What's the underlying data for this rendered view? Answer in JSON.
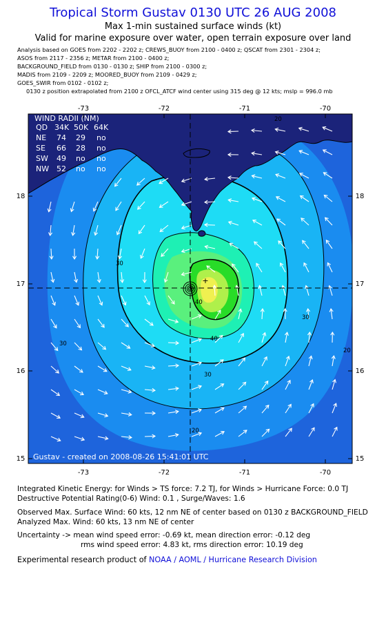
{
  "header": {
    "title": "Tropical Storm Gustav 0130 UTC 26 AUG 2008",
    "subtitle": "Max 1-min sustained surface winds (kt)",
    "validity": "Valid for marine exposure over water, open terrain exposure over land"
  },
  "sources": [
    "Analysis based on  GOES from 2202 - 2202 z;  CREWS_BUOY from 2100 - 0400 z;  QSCAT from 2301 - 2304 z;",
    "ASOS from 2117 - 2356 z;  METAR from 2100 - 0400 z;",
    "BACKGROUND_FIELD from 0130 - 0130 z;  SHIP from 2100 - 0300 z;",
    "MADIS from 2109 - 2209 z;  MOORED_BUOY from 2109 - 0429 z;",
    "GOES_SWIR from 0102 - 0102 z;",
    "     0130 z position extrapolated from 2100 z OFCL_ATCF wind center using 315 deg @ 12 kts; mslp = 996.0 mb"
  ],
  "map": {
    "lon_ticks": [
      "-73",
      "-72",
      "-71",
      "-70"
    ],
    "lat_ticks": [
      "18",
      "17",
      "16",
      "15"
    ],
    "lon_range": [
      -73.7,
      -69.8
    ],
    "lat_range": [
      15.0,
      17.95
    ],
    "center": {
      "lon": -71.65,
      "lat": 16.95
    },
    "contour_labels": [
      "20",
      "30",
      "30",
      "30",
      "30",
      "40",
      "40",
      "20",
      "20"
    ],
    "credit": "Gustav - created on 2008-08-26 15:41:01 UTC",
    "colors": {
      "ocean": "#1e64dc",
      "band_25": "#1a8cf0",
      "band_30": "#19b4f5",
      "band_35": "#1edcf5",
      "band_40": "#1ef0b4",
      "band_45": "#5af07d",
      "band_50": "#28dc28",
      "band_55": "#aff04b",
      "band_60": "#f0f050"
    }
  },
  "wind_radii": {
    "title": "WIND RADII (NM)",
    "columns": [
      "QD",
      "34K",
      "50K",
      "64K"
    ],
    "rows": [
      [
        "NE",
        "74",
        "29",
        "no"
      ],
      [
        "SE",
        "66",
        "28",
        "no"
      ],
      [
        "SW",
        "49",
        "no",
        "no"
      ],
      [
        "NW",
        "52",
        "no",
        "no"
      ]
    ]
  },
  "stats": {
    "ike": "Integrated Kinetic Energy:  for Winds > TS force: 7.2 TJ,  for Winds > Hurricane Force: 0.0 TJ",
    "dpr": "Destructive Potential Rating(0-6)   Wind: 0.1 , Surge/Waves: 1.6",
    "obs_max": "Observed Max. Surface Wind: 60 kts, 12 nm NE of center based on 0130 z BACKGROUND_FIELD",
    "analyzed_max": "Analyzed Max. Wind: 60 kts, 13 nm NE of center",
    "uncertainty_1": "Uncertainty -> mean wind speed error:  -0.69 kt,   mean direction error:  -0.12 deg",
    "uncertainty_2": "rms wind speed error: 4.83 kt,   rms direction error: 10.19 deg",
    "footer_prefix": "Experimental research product of ",
    "footer_link": "NOAA / AOML / Hurricane Research Division"
  }
}
